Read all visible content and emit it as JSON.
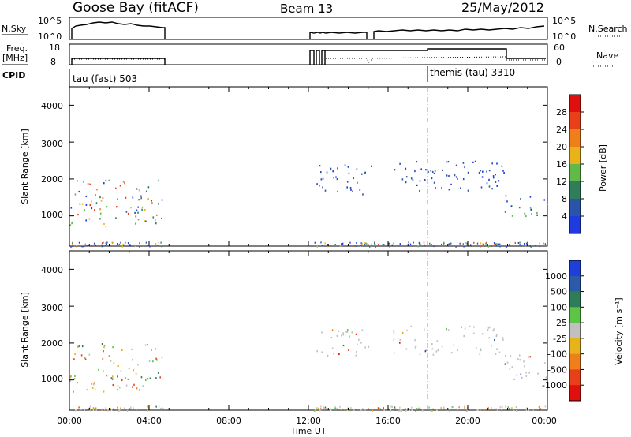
{
  "header": {
    "station": "Goose Bay (fitACF)",
    "beam": "Beam 13",
    "date": "25/May/2012"
  },
  "top_panels": {
    "nsky_label": "N.Sky",
    "nsky_ticks": [
      "10^5",
      "10^0"
    ],
    "nsearch_label": "N.Search",
    "freq_label_1": "Freq.",
    "freq_label_2": "[MHz]",
    "freq_ticks": [
      "18",
      "8"
    ],
    "nave_label": "Nave",
    "nave_ticks": [
      "60",
      "0"
    ],
    "cpid_label": "CPID",
    "cpid_1": "tau (fast) 503",
    "cpid_2": "themis (tau) 3310"
  },
  "power_panel": {
    "ylabel": "Slant Range [km]",
    "yticks": [
      "4000",
      "3000",
      "2000",
      "1000"
    ],
    "cbar_label": "Power [dB]",
    "cbar_ticks": [
      "28",
      "24",
      "20",
      "16",
      "12",
      "8",
      "4"
    ],
    "colors": [
      "#1f3be0",
      "#2a54a8",
      "#2f7d5a",
      "#63b84a",
      "#e8b21a",
      "#ef7f1a",
      "#e8401a",
      "#e0100e"
    ]
  },
  "velocity_panel": {
    "ylabel": "Slant Range [km]",
    "yticks": [
      "4000",
      "3000",
      "2000",
      "1000"
    ],
    "cbar_label": "Velocity [m s⁻¹]",
    "cbar_ticks": [
      "1000",
      "500",
      "100",
      "25",
      "-25",
      "-100",
      "-500",
      "-1000"
    ],
    "colors": [
      "#1e3fd8",
      "#2a5aa8",
      "#2e7d58",
      "#5ec447",
      "#c0c0c0",
      "#e8b21a",
      "#ef7f1a",
      "#e8401a",
      "#e0100e"
    ]
  },
  "xaxis": {
    "label": "Time UT",
    "ticks": [
      "00:00",
      "04:00",
      "08:00",
      "12:00",
      "16:00",
      "20:00",
      "00:00"
    ]
  },
  "chart_data": {
    "type": "heatmap",
    "title": "Goose Bay (fitACF)",
    "xlabel": "Time UT",
    "ylabel": "Slant Range [km]",
    "xlim_hours": [
      0,
      24
    ],
    "ylim_km": [
      180,
      4500
    ],
    "scatter_regions": [
      {
        "t0": 0.0,
        "t1": 4.7,
        "r0": 700,
        "r1": 2000,
        "power_db": 14,
        "velocity": -100
      },
      {
        "t0": 12.4,
        "t1": 15.2,
        "r0": 1600,
        "r1": 2400,
        "power_db": 8,
        "velocity": 0
      },
      {
        "t0": 16.2,
        "t1": 21.8,
        "r0": 1700,
        "r1": 2500,
        "power_db": 8,
        "velocity": 0
      },
      {
        "t0": 21.8,
        "t1": 24.0,
        "r0": 1000,
        "r1": 1700,
        "power_db": 14,
        "velocity": 0
      }
    ]
  }
}
